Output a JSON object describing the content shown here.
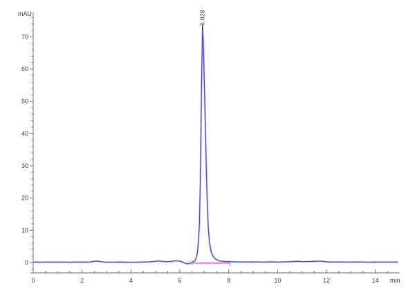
{
  "chart_data": {
    "type": "line",
    "title": "",
    "xlabel": "min",
    "ylabel": "mAU",
    "xlim": [
      0,
      15
    ],
    "ylim": [
      -3.2,
      77.5
    ],
    "x_ticks_major": [
      0,
      2,
      4,
      6,
      8,
      10,
      12,
      14
    ],
    "x_tick_minor_step": 0.5,
    "y_ticks_major": [
      0,
      10,
      20,
      30,
      40,
      50,
      60,
      70
    ],
    "y_tick_minor_step": 2,
    "grid": false,
    "legend": "none",
    "colors": {
      "axis": "#6b6b6b",
      "tick_text": "#3a3a3a",
      "trace": "#4141d6",
      "trace_halo": "#bcbff2",
      "integration_baseline": "#ff35d8",
      "integration_marker": "#9a9a9a",
      "apex_marker": "#222222"
    },
    "series": [
      {
        "name": "UV absorbance trace",
        "points": [
          [
            0,
            0.15
          ],
          [
            0.3,
            0.12
          ],
          [
            0.6,
            0.15
          ],
          [
            0.9,
            0.12
          ],
          [
            1.2,
            0.15
          ],
          [
            1.5,
            0.13
          ],
          [
            1.8,
            0.15
          ],
          [
            2.1,
            0.12
          ],
          [
            2.35,
            0.18
          ],
          [
            2.5,
            0.4
          ],
          [
            2.65,
            0.45
          ],
          [
            2.8,
            0.22
          ],
          [
            3.0,
            0.13
          ],
          [
            3.3,
            0.12
          ],
          [
            3.6,
            0.14
          ],
          [
            3.9,
            0.1
          ],
          [
            4.2,
            0.13
          ],
          [
            4.5,
            0.15
          ],
          [
            4.75,
            0.2
          ],
          [
            4.95,
            0.32
          ],
          [
            5.1,
            0.5
          ],
          [
            5.25,
            0.42
          ],
          [
            5.4,
            0.22
          ],
          [
            5.55,
            0.28
          ],
          [
            5.7,
            0.45
          ],
          [
            5.85,
            0.55
          ],
          [
            6.0,
            0.42
          ],
          [
            6.1,
            0.15
          ],
          [
            6.2,
            -0.15
          ],
          [
            6.3,
            -0.38
          ],
          [
            6.4,
            -0.3
          ],
          [
            6.47,
            -0.05
          ],
          [
            6.53,
            0.15
          ],
          [
            6.6,
            0.5
          ],
          [
            6.66,
            1.2
          ],
          [
            6.72,
            3.0
          ],
          [
            6.76,
            6.5
          ],
          [
            6.8,
            12
          ],
          [
            6.83,
            22
          ],
          [
            6.86,
            38
          ],
          [
            6.89,
            55
          ],
          [
            6.92,
            69
          ],
          [
            6.928,
            72.5
          ],
          [
            6.95,
            70
          ],
          [
            6.98,
            63
          ],
          [
            7.01,
            53
          ],
          [
            7.05,
            40
          ],
          [
            7.09,
            27
          ],
          [
            7.13,
            17
          ],
          [
            7.17,
            10
          ],
          [
            7.22,
            5.8
          ],
          [
            7.28,
            3.4
          ],
          [
            7.35,
            2.0
          ],
          [
            7.44,
            1.2
          ],
          [
            7.55,
            0.7
          ],
          [
            7.68,
            0.45
          ],
          [
            7.85,
            0.32
          ],
          [
            8.05,
            0.25
          ],
          [
            8.3,
            0.2
          ],
          [
            8.6,
            0.18
          ],
          [
            9.0,
            0.2
          ],
          [
            9.35,
            0.15
          ],
          [
            9.7,
            0.2
          ],
          [
            10.0,
            0.15
          ],
          [
            10.3,
            0.2
          ],
          [
            10.6,
            0.28
          ],
          [
            10.85,
            0.38
          ],
          [
            11.05,
            0.25
          ],
          [
            11.3,
            0.3
          ],
          [
            11.55,
            0.38
          ],
          [
            11.8,
            0.45
          ],
          [
            11.95,
            0.25
          ],
          [
            12.15,
            0.15
          ],
          [
            12.5,
            0.18
          ],
          [
            12.9,
            0.14
          ],
          [
            13.3,
            0.17
          ],
          [
            13.7,
            0.13
          ],
          [
            14.1,
            0.16
          ],
          [
            14.5,
            0.14
          ],
          [
            14.93,
            0.15
          ]
        ]
      }
    ],
    "peak": {
      "label": "6.928",
      "retention_time_min": 6.928,
      "height_mau": 72.5,
      "integration_start_min": 6.5,
      "integration_end_min": 8.05
    }
  }
}
